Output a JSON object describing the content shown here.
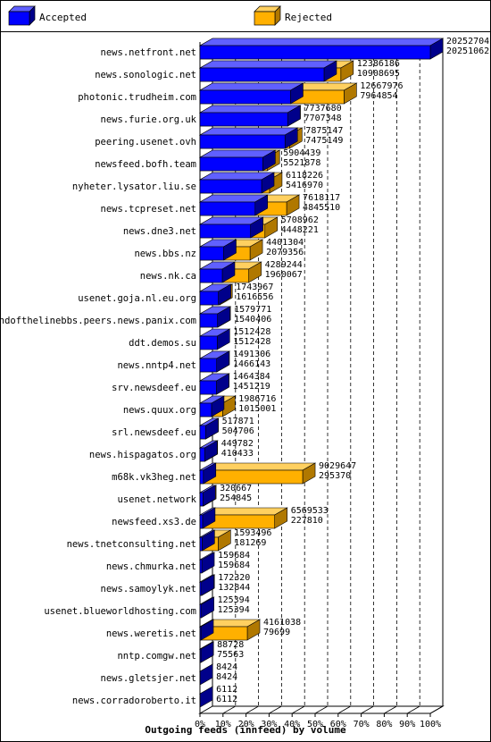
{
  "chart_data": {
    "type": "bar",
    "orientation": "horizontal",
    "stacking": "overlaid-3d",
    "xlabel": "Outgoing feeds (innfeed) by volume",
    "ylabel": "",
    "xlim": [
      0,
      100
    ],
    "x_unit": "% of max total",
    "x_ticks": [
      "0%",
      "10%",
      "20%",
      "30%",
      "40%",
      "50%",
      "60%",
      "70%",
      "80%",
      "90%",
      "100%"
    ],
    "grid": "vertical-dashed",
    "legend_position": "top",
    "series": [
      {
        "name": "Accepted",
        "color": "#0000ff"
      },
      {
        "name": "Rejected",
        "color": "#ffb000"
      }
    ],
    "categories": [
      {
        "host": "news.netfront.net",
        "total": 20252704,
        "accepted": 20251062
      },
      {
        "host": "news.sonologic.net",
        "total": 12386186,
        "accepted": 10908695
      },
      {
        "host": "photonic.trudheim.com",
        "total": 12667976,
        "accepted": 7964854
      },
      {
        "host": "news.furie.org.uk",
        "total": 7737680,
        "accepted": 7707348
      },
      {
        "host": "peering.usenet.ovh",
        "total": 7875147,
        "accepted": 7475149
      },
      {
        "host": "newsfeed.bofh.team",
        "total": 5904439,
        "accepted": 5521878
      },
      {
        "host": "nyheter.lysator.liu.se",
        "total": 6118226,
        "accepted": 5416970
      },
      {
        "host": "news.tcpreset.net",
        "total": 7618117,
        "accepted": 4845510
      },
      {
        "host": "news.dne3.net",
        "total": 5708962,
        "accepted": 4448221
      },
      {
        "host": "news.bbs.nz",
        "total": 4401304,
        "accepted": 2079356
      },
      {
        "host": "news.nk.ca",
        "total": 4289244,
        "accepted": 1960067
      },
      {
        "host": "usenet.goja.nl.eu.org",
        "total": 1743967,
        "accepted": 1616556
      },
      {
        "host": "endofthelinebbs.peers.news.panix.com",
        "total": 1579771,
        "accepted": 1540406
      },
      {
        "host": "ddt.demos.su",
        "total": 1512428,
        "accepted": 1512428
      },
      {
        "host": "news.nntp4.net",
        "total": 1491306,
        "accepted": 1466143
      },
      {
        "host": "srv.newsdeef.eu",
        "total": 1464384,
        "accepted": 1451219
      },
      {
        "host": "news.quux.org",
        "total": 1986716,
        "accepted": 1015001
      },
      {
        "host": "srl.newsdeef.eu",
        "total": 517871,
        "accepted": 504706
      },
      {
        "host": "news.hispagatos.org",
        "total": 449782,
        "accepted": 410433
      },
      {
        "host": "m68k.vk3heg.net",
        "total": 9029647,
        "accepted": 295370
      },
      {
        "host": "usenet.network",
        "total": 320667,
        "accepted": 254845
      },
      {
        "host": "newsfeed.xs3.de",
        "total": 6569533,
        "accepted": 227810
      },
      {
        "host": "news.tnetconsulting.net",
        "total": 1593496,
        "accepted": 181269
      },
      {
        "host": "news.chmurka.net",
        "total": 159684,
        "accepted": 159684
      },
      {
        "host": "news.samoylyk.net",
        "total": 172320,
        "accepted": 132844
      },
      {
        "host": "usenet.blueworldhosting.com",
        "total": 125394,
        "accepted": 125394
      },
      {
        "host": "news.weretis.net",
        "total": 4161038,
        "accepted": 79699
      },
      {
        "host": "nntp.comgw.net",
        "total": 88728,
        "accepted": 75563
      },
      {
        "host": "news.gletsjer.net",
        "total": 8424,
        "accepted": 8424
      },
      {
        "host": "news.corradoroberto.it",
        "total": 6112,
        "accepted": 6112
      }
    ]
  }
}
